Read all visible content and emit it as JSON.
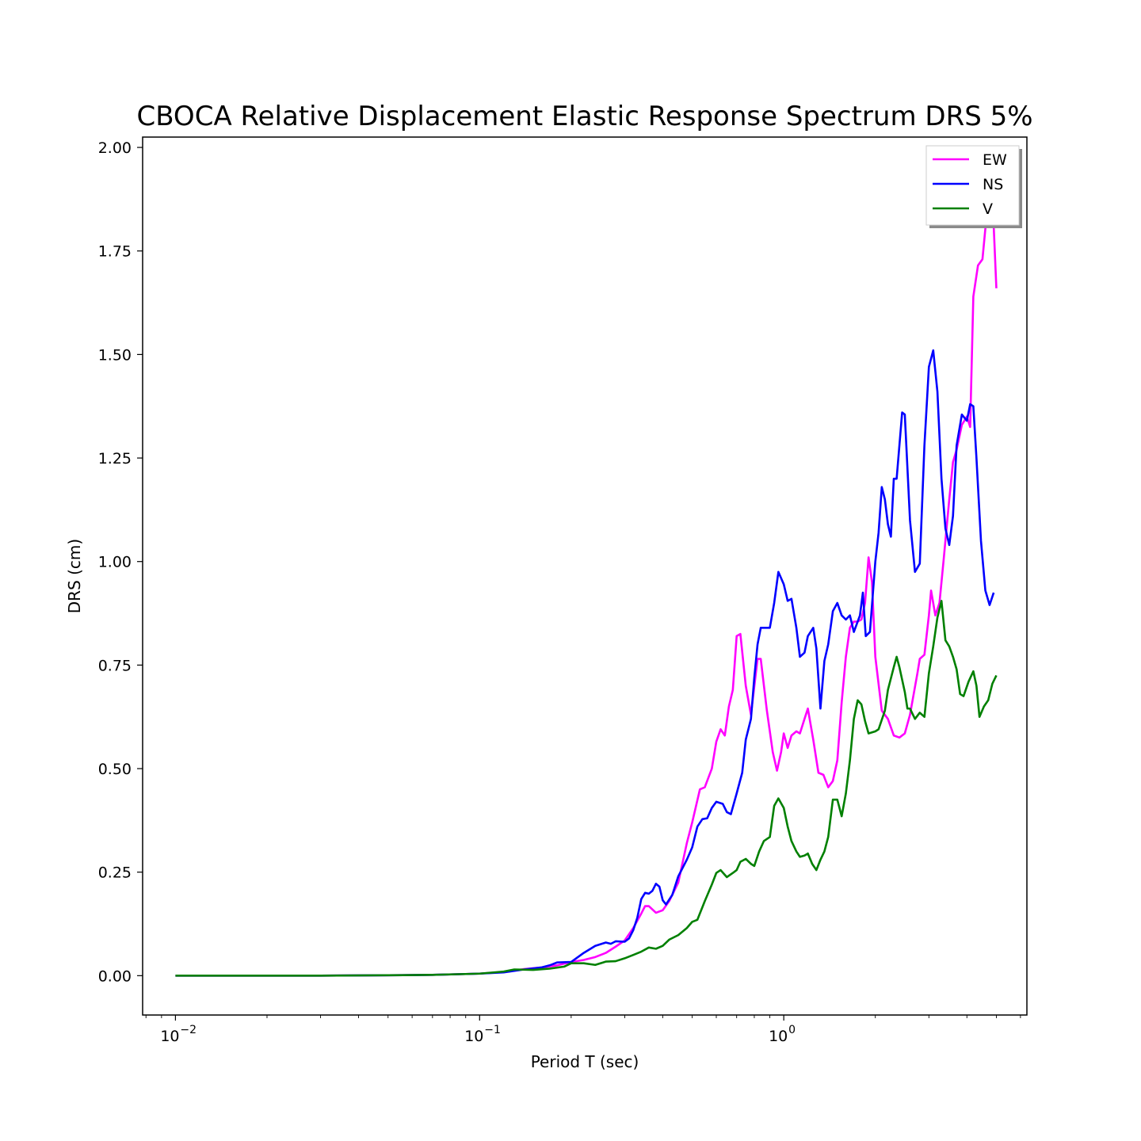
{
  "chart_data": {
    "type": "line",
    "title": "CBOCA Relative Displacement Elastic Response Spectrum DRS 5%",
    "xlabel": "Period T (sec)",
    "ylabel": "DRS (cm)",
    "xscale": "log",
    "xlim": [
      0.0078,
      6.3
    ],
    "ylim": [
      -0.095,
      2.025
    ],
    "x_ticks": [
      {
        "value": 0.01,
        "label": "10",
        "exp": "−2"
      },
      {
        "value": 0.1,
        "label": "10",
        "exp": "−1"
      },
      {
        "value": 1,
        "label": "10",
        "exp": "0"
      }
    ],
    "y_ticks": [
      {
        "value": 0,
        "label": "0.00"
      },
      {
        "value": 0.25,
        "label": "0.25"
      },
      {
        "value": 0.5,
        "label": "0.50"
      },
      {
        "value": 0.75,
        "label": "0.75"
      },
      {
        "value": 1.0,
        "label": "1.00"
      },
      {
        "value": 1.25,
        "label": "1.25"
      },
      {
        "value": 1.5,
        "label": "1.50"
      },
      {
        "value": 1.75,
        "label": "1.75"
      },
      {
        "value": 2.0,
        "label": "2.00"
      }
    ],
    "grid": false,
    "legend": {
      "position": "top-right"
    },
    "series": [
      {
        "name": "EW",
        "color": "#ff00ff",
        "points": [
          [
            0.01,
            0.0
          ],
          [
            0.03,
            0.0
          ],
          [
            0.05,
            0.001
          ],
          [
            0.07,
            0.002
          ],
          [
            0.09,
            0.004
          ],
          [
            0.1,
            0.005
          ],
          [
            0.12,
            0.009
          ],
          [
            0.14,
            0.016
          ],
          [
            0.16,
            0.02
          ],
          [
            0.18,
            0.025
          ],
          [
            0.2,
            0.033
          ],
          [
            0.22,
            0.038
          ],
          [
            0.24,
            0.045
          ],
          [
            0.26,
            0.055
          ],
          [
            0.28,
            0.07
          ],
          [
            0.3,
            0.085
          ],
          [
            0.32,
            0.115
          ],
          [
            0.34,
            0.15
          ],
          [
            0.35,
            0.168
          ],
          [
            0.36,
            0.168
          ],
          [
            0.38,
            0.152
          ],
          [
            0.4,
            0.158
          ],
          [
            0.42,
            0.18
          ],
          [
            0.45,
            0.225
          ],
          [
            0.48,
            0.32
          ],
          [
            0.5,
            0.37
          ],
          [
            0.53,
            0.45
          ],
          [
            0.55,
            0.455
          ],
          [
            0.58,
            0.5
          ],
          [
            0.6,
            0.565
          ],
          [
            0.62,
            0.595
          ],
          [
            0.64,
            0.58
          ],
          [
            0.66,
            0.65
          ],
          [
            0.68,
            0.69
          ],
          [
            0.7,
            0.82
          ],
          [
            0.72,
            0.825
          ],
          [
            0.75,
            0.7
          ],
          [
            0.78,
            0.63
          ],
          [
            0.82,
            0.765
          ],
          [
            0.84,
            0.765
          ],
          [
            0.88,
            0.64
          ],
          [
            0.92,
            0.54
          ],
          [
            0.95,
            0.495
          ],
          [
            0.98,
            0.54
          ],
          [
            1.0,
            0.585
          ],
          [
            1.03,
            0.55
          ],
          [
            1.06,
            0.58
          ],
          [
            1.1,
            0.59
          ],
          [
            1.13,
            0.585
          ],
          [
            1.17,
            0.62
          ],
          [
            1.2,
            0.645
          ],
          [
            1.25,
            0.57
          ],
          [
            1.3,
            0.49
          ],
          [
            1.35,
            0.485
          ],
          [
            1.4,
            0.455
          ],
          [
            1.45,
            0.47
          ],
          [
            1.5,
            0.52
          ],
          [
            1.55,
            0.66
          ],
          [
            1.6,
            0.77
          ],
          [
            1.65,
            0.84
          ],
          [
            1.7,
            0.855
          ],
          [
            1.75,
            0.855
          ],
          [
            1.8,
            0.86
          ],
          [
            1.85,
            0.9
          ],
          [
            1.9,
            1.01
          ],
          [
            1.95,
            0.95
          ],
          [
            2.0,
            0.77
          ],
          [
            2.1,
            0.64
          ],
          [
            2.2,
            0.62
          ],
          [
            2.3,
            0.58
          ],
          [
            2.4,
            0.575
          ],
          [
            2.5,
            0.585
          ],
          [
            2.6,
            0.63
          ],
          [
            2.75,
            0.73
          ],
          [
            2.8,
            0.765
          ],
          [
            2.9,
            0.775
          ],
          [
            3.0,
            0.87
          ],
          [
            3.05,
            0.93
          ],
          [
            3.15,
            0.87
          ],
          [
            3.25,
            0.9
          ],
          [
            3.35,
            1.0
          ],
          [
            3.5,
            1.15
          ],
          [
            3.6,
            1.24
          ],
          [
            3.7,
            1.27
          ],
          [
            3.85,
            1.33
          ],
          [
            4.0,
            1.35
          ],
          [
            4.1,
            1.325
          ],
          [
            4.2,
            1.64
          ],
          [
            4.35,
            1.715
          ],
          [
            4.5,
            1.73
          ],
          [
            4.65,
            1.84
          ],
          [
            4.8,
            1.905
          ],
          [
            4.9,
            1.81
          ],
          [
            5.0,
            1.66
          ]
        ]
      },
      {
        "name": "NS",
        "color": "#0000ff",
        "points": [
          [
            0.01,
            0.0
          ],
          [
            0.03,
            0.0
          ],
          [
            0.05,
            0.001
          ],
          [
            0.07,
            0.002
          ],
          [
            0.09,
            0.004
          ],
          [
            0.1,
            0.005
          ],
          [
            0.12,
            0.008
          ],
          [
            0.14,
            0.015
          ],
          [
            0.16,
            0.02
          ],
          [
            0.17,
            0.025
          ],
          [
            0.18,
            0.032
          ],
          [
            0.2,
            0.033
          ],
          [
            0.22,
            0.055
          ],
          [
            0.24,
            0.072
          ],
          [
            0.26,
            0.08
          ],
          [
            0.27,
            0.077
          ],
          [
            0.28,
            0.083
          ],
          [
            0.3,
            0.082
          ],
          [
            0.31,
            0.09
          ],
          [
            0.32,
            0.11
          ],
          [
            0.33,
            0.14
          ],
          [
            0.34,
            0.185
          ],
          [
            0.35,
            0.2
          ],
          [
            0.36,
            0.198
          ],
          [
            0.37,
            0.205
          ],
          [
            0.38,
            0.222
          ],
          [
            0.39,
            0.215
          ],
          [
            0.4,
            0.182
          ],
          [
            0.41,
            0.172
          ],
          [
            0.43,
            0.195
          ],
          [
            0.45,
            0.24
          ],
          [
            0.48,
            0.28
          ],
          [
            0.5,
            0.31
          ],
          [
            0.52,
            0.36
          ],
          [
            0.54,
            0.378
          ],
          [
            0.56,
            0.38
          ],
          [
            0.58,
            0.405
          ],
          [
            0.6,
            0.42
          ],
          [
            0.63,
            0.415
          ],
          [
            0.65,
            0.395
          ],
          [
            0.67,
            0.39
          ],
          [
            0.7,
            0.44
          ],
          [
            0.73,
            0.49
          ],
          [
            0.75,
            0.57
          ],
          [
            0.78,
            0.62
          ],
          [
            0.8,
            0.72
          ],
          [
            0.82,
            0.8
          ],
          [
            0.84,
            0.84
          ],
          [
            0.87,
            0.84
          ],
          [
            0.9,
            0.84
          ],
          [
            0.93,
            0.9
          ],
          [
            0.96,
            0.975
          ],
          [
            0.98,
            0.96
          ],
          [
            1.0,
            0.945
          ],
          [
            1.03,
            0.905
          ],
          [
            1.06,
            0.91
          ],
          [
            1.1,
            0.84
          ],
          [
            1.13,
            0.77
          ],
          [
            1.17,
            0.78
          ],
          [
            1.2,
            0.82
          ],
          [
            1.25,
            0.84
          ],
          [
            1.28,
            0.79
          ],
          [
            1.32,
            0.645
          ],
          [
            1.36,
            0.76
          ],
          [
            1.4,
            0.8
          ],
          [
            1.45,
            0.88
          ],
          [
            1.5,
            0.9
          ],
          [
            1.55,
            0.87
          ],
          [
            1.6,
            0.86
          ],
          [
            1.65,
            0.87
          ],
          [
            1.7,
            0.83
          ],
          [
            1.78,
            0.87
          ],
          [
            1.82,
            0.925
          ],
          [
            1.86,
            0.82
          ],
          [
            1.92,
            0.83
          ],
          [
            2.0,
            1.0
          ],
          [
            2.05,
            1.07
          ],
          [
            2.1,
            1.18
          ],
          [
            2.15,
            1.15
          ],
          [
            2.2,
            1.09
          ],
          [
            2.25,
            1.06
          ],
          [
            2.3,
            1.2
          ],
          [
            2.35,
            1.2
          ],
          [
            2.45,
            1.36
          ],
          [
            2.5,
            1.355
          ],
          [
            2.6,
            1.1
          ],
          [
            2.7,
            0.975
          ],
          [
            2.8,
            0.995
          ],
          [
            2.9,
            1.28
          ],
          [
            3.0,
            1.47
          ],
          [
            3.1,
            1.51
          ],
          [
            3.2,
            1.41
          ],
          [
            3.3,
            1.2
          ],
          [
            3.4,
            1.08
          ],
          [
            3.5,
            1.04
          ],
          [
            3.6,
            1.11
          ],
          [
            3.7,
            1.28
          ],
          [
            3.85,
            1.355
          ],
          [
            4.0,
            1.34
          ],
          [
            4.1,
            1.38
          ],
          [
            4.2,
            1.375
          ],
          [
            4.3,
            1.25
          ],
          [
            4.45,
            1.05
          ],
          [
            4.6,
            0.93
          ],
          [
            4.75,
            0.895
          ],
          [
            4.9,
            0.925
          ]
        ]
      },
      {
        "name": "V",
        "color": "#008000",
        "points": [
          [
            0.01,
            0.0
          ],
          [
            0.03,
            0.0
          ],
          [
            0.05,
            0.001
          ],
          [
            0.07,
            0.002
          ],
          [
            0.09,
            0.004
          ],
          [
            0.1,
            0.005
          ],
          [
            0.12,
            0.01
          ],
          [
            0.13,
            0.015
          ],
          [
            0.15,
            0.014
          ],
          [
            0.17,
            0.017
          ],
          [
            0.19,
            0.022
          ],
          [
            0.2,
            0.03
          ],
          [
            0.22,
            0.03
          ],
          [
            0.24,
            0.026
          ],
          [
            0.26,
            0.034
          ],
          [
            0.28,
            0.035
          ],
          [
            0.3,
            0.042
          ],
          [
            0.32,
            0.05
          ],
          [
            0.34,
            0.058
          ],
          [
            0.36,
            0.068
          ],
          [
            0.38,
            0.065
          ],
          [
            0.4,
            0.072
          ],
          [
            0.42,
            0.087
          ],
          [
            0.45,
            0.098
          ],
          [
            0.48,
            0.115
          ],
          [
            0.5,
            0.13
          ],
          [
            0.52,
            0.135
          ],
          [
            0.55,
            0.18
          ],
          [
            0.58,
            0.22
          ],
          [
            0.6,
            0.248
          ],
          [
            0.62,
            0.255
          ],
          [
            0.65,
            0.238
          ],
          [
            0.68,
            0.248
          ],
          [
            0.7,
            0.255
          ],
          [
            0.72,
            0.275
          ],
          [
            0.75,
            0.282
          ],
          [
            0.78,
            0.27
          ],
          [
            0.8,
            0.265
          ],
          [
            0.83,
            0.3
          ],
          [
            0.86,
            0.325
          ],
          [
            0.9,
            0.335
          ],
          [
            0.93,
            0.41
          ],
          [
            0.96,
            0.428
          ],
          [
            1.0,
            0.405
          ],
          [
            1.03,
            0.36
          ],
          [
            1.06,
            0.325
          ],
          [
            1.1,
            0.3
          ],
          [
            1.13,
            0.287
          ],
          [
            1.17,
            0.29
          ],
          [
            1.2,
            0.295
          ],
          [
            1.24,
            0.27
          ],
          [
            1.28,
            0.255
          ],
          [
            1.32,
            0.28
          ],
          [
            1.36,
            0.3
          ],
          [
            1.4,
            0.335
          ],
          [
            1.45,
            0.425
          ],
          [
            1.5,
            0.425
          ],
          [
            1.55,
            0.385
          ],
          [
            1.6,
            0.44
          ],
          [
            1.65,
            0.52
          ],
          [
            1.7,
            0.62
          ],
          [
            1.75,
            0.665
          ],
          [
            1.8,
            0.655
          ],
          [
            1.85,
            0.615
          ],
          [
            1.9,
            0.585
          ],
          [
            2.0,
            0.59
          ],
          [
            2.05,
            0.595
          ],
          [
            2.15,
            0.64
          ],
          [
            2.2,
            0.69
          ],
          [
            2.3,
            0.745
          ],
          [
            2.35,
            0.77
          ],
          [
            2.4,
            0.745
          ],
          [
            2.5,
            0.685
          ],
          [
            2.55,
            0.645
          ],
          [
            2.6,
            0.645
          ],
          [
            2.7,
            0.62
          ],
          [
            2.8,
            0.635
          ],
          [
            2.9,
            0.625
          ],
          [
            3.0,
            0.73
          ],
          [
            3.1,
            0.795
          ],
          [
            3.2,
            0.865
          ],
          [
            3.3,
            0.905
          ],
          [
            3.4,
            0.81
          ],
          [
            3.5,
            0.795
          ],
          [
            3.6,
            0.77
          ],
          [
            3.7,
            0.74
          ],
          [
            3.8,
            0.68
          ],
          [
            3.9,
            0.675
          ],
          [
            4.05,
            0.71
          ],
          [
            4.2,
            0.735
          ],
          [
            4.3,
            0.7
          ],
          [
            4.4,
            0.625
          ],
          [
            4.55,
            0.65
          ],
          [
            4.7,
            0.665
          ],
          [
            4.85,
            0.705
          ],
          [
            5.0,
            0.725
          ]
        ]
      }
    ]
  }
}
